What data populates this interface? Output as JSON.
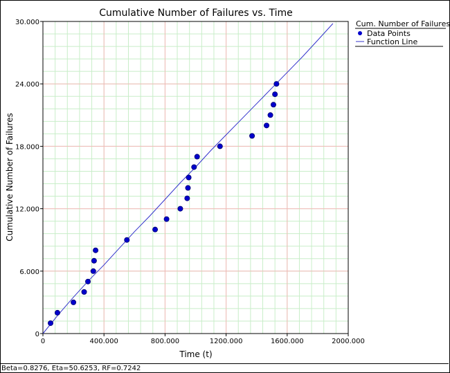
{
  "footer_text": "Beta=0.8276, Eta=50.6253, RF=0.7242",
  "chart_data": {
    "type": "scatter",
    "title": "Cumulative Number of Failures vs. Time",
    "xlabel": "Time (t)",
    "ylabel": "Cumulative Number of Failures",
    "xlim": [
      0,
      2000
    ],
    "ylim": [
      0,
      30
    ],
    "x_ticks": [
      0,
      400,
      800,
      1200,
      1600,
      2000
    ],
    "x_tick_labels": [
      "0",
      "400.000",
      "800.000",
      "1200.000",
      "1600.000",
      "2000.000"
    ],
    "y_ticks": [
      0,
      6,
      12,
      18,
      24,
      30
    ],
    "y_tick_labels": [
      "0",
      "6.000",
      "12.000",
      "18.000",
      "24.000",
      "30.000"
    ],
    "grid": true,
    "legend": {
      "title": "Cum. Number of Failures",
      "placement": "right",
      "entries": [
        "Data Points",
        "Function Line"
      ]
    },
    "colors": {
      "points": "#0000cc",
      "line": "#3333cc",
      "major_grid": "#f4b8b8",
      "minor_grid": "#c8eec8"
    },
    "series": [
      {
        "name": "Data Points",
        "type": "scatter",
        "x": [
          50,
          95,
          200,
          270,
          295,
          330,
          335,
          345,
          550,
          735,
          810,
          900,
          945,
          950,
          955,
          990,
          1010,
          1160,
          1370,
          1465,
          1490,
          1510,
          1520,
          1530
        ],
        "y": [
          1,
          2,
          3,
          4,
          5,
          6,
          7,
          8,
          9,
          10,
          11,
          12,
          13,
          14,
          15,
          16,
          17,
          18,
          19,
          20,
          21,
          22,
          23,
          24
        ]
      },
      {
        "name": "Function Line",
        "type": "line",
        "x": [
          0,
          100,
          200,
          300,
          400,
          500,
          600,
          700,
          800,
          900,
          1000,
          1100,
          1200,
          1300,
          1400,
          1500,
          1600,
          1700,
          1800,
          1900
        ],
        "y": [
          0,
          1.8,
          3.5,
          5.1,
          6.6,
          8.2,
          9.8,
          11.3,
          12.9,
          14.5,
          16.0,
          17.6,
          19.1,
          20.6,
          22.1,
          23.6,
          25.1,
          26.6,
          28.2,
          29.8
        ]
      }
    ]
  }
}
